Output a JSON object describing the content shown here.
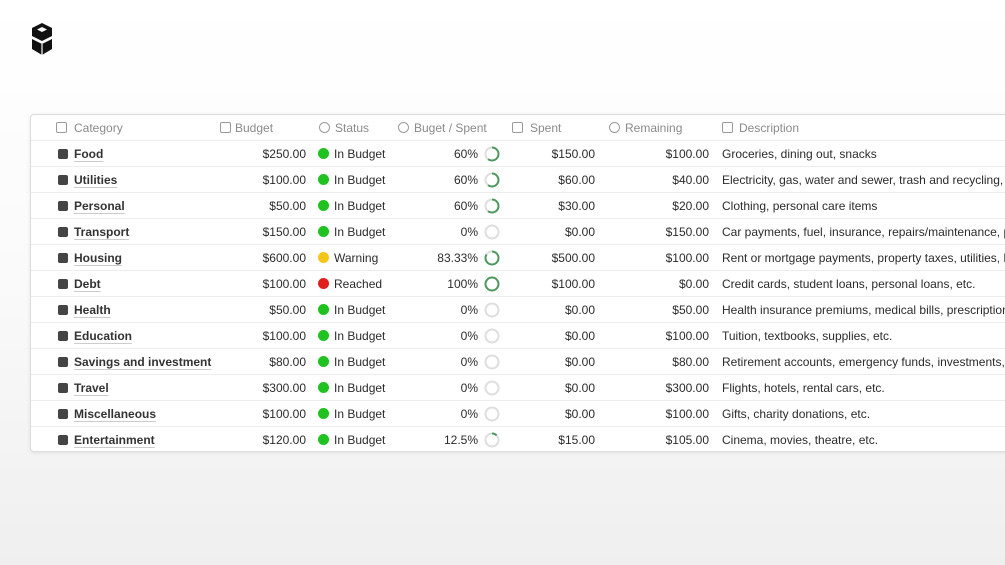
{
  "table": {
    "columns": [
      "Category",
      "Budget",
      "Status",
      "Buget / Spent",
      "Spent",
      "Remaining",
      "Description"
    ],
    "rows": [
      {
        "category": "Food",
        "budget": "$250.00",
        "status": "In Budget",
        "status_color": "#1fc21f",
        "ratio": "60%",
        "spent": "$150.00",
        "remaining": "$100.00",
        "description": "Groceries, dining out, snacks"
      },
      {
        "category": "Utilities",
        "budget": "$100.00",
        "status": "In Budget",
        "status_color": "#1fc21f",
        "ratio": "60%",
        "spent": "$60.00",
        "remaining": "$40.00",
        "description": "Electricity, gas, water and sewer, trash and recycling, int"
      },
      {
        "category": "Personal",
        "budget": "$50.00",
        "status": "In Budget",
        "status_color": "#1fc21f",
        "ratio": "60%",
        "spent": "$30.00",
        "remaining": "$20.00",
        "description": "Clothing, personal care items"
      },
      {
        "category": "Transport",
        "budget": "$150.00",
        "status": "In Budget",
        "status_color": "#1fc21f",
        "ratio": "0%",
        "spent": "$0.00",
        "remaining": "$150.00",
        "description": "Car payments, fuel, insurance, repairs/maintenance, pub"
      },
      {
        "category": "Housing",
        "budget": "$600.00",
        "status": "Warning",
        "status_color": "#f5c518",
        "ratio": "83.33%",
        "spent": "$500.00",
        "remaining": "$100.00",
        "description": "Rent or mortgage payments, property taxes, utilities, hor"
      },
      {
        "category": "Debt",
        "budget": "$100.00",
        "status": "Reached",
        "status_color": "#e0201c",
        "ratio": "100%",
        "spent": "$100.00",
        "remaining": "$0.00",
        "description": "Credit cards, student loans, personal loans, etc."
      },
      {
        "category": "Health",
        "budget": "$50.00",
        "status": "In Budget",
        "status_color": "#1fc21f",
        "ratio": "0%",
        "spent": "$0.00",
        "remaining": "$50.00",
        "description": "Health insurance premiums, medical bills, prescriptions,"
      },
      {
        "category": "Education",
        "budget": "$100.00",
        "status": "In Budget",
        "status_color": "#1fc21f",
        "ratio": "0%",
        "spent": "$0.00",
        "remaining": "$100.00",
        "description": "Tuition, textbooks, supplies, etc."
      },
      {
        "category": "Savings and investment",
        "budget": "$80.00",
        "status": "In Budget",
        "status_color": "#1fc21f",
        "ratio": "0%",
        "spent": "$0.00",
        "remaining": "$80.00",
        "description": "Retirement accounts, emergency funds, investments, etc"
      },
      {
        "category": "Travel",
        "budget": "$300.00",
        "status": "In Budget",
        "status_color": "#1fc21f",
        "ratio": "0%",
        "spent": "$0.00",
        "remaining": "$300.00",
        "description": "Flights, hotels, rental cars, etc."
      },
      {
        "category": "Miscellaneous",
        "budget": "$100.00",
        "status": "In Budget",
        "status_color": "#1fc21f",
        "ratio": "0%",
        "spent": "$0.00",
        "remaining": "$100.00",
        "description": "Gifts, charity donations, etc."
      },
      {
        "category": "Entertainment",
        "budget": "$120.00",
        "status": "In Budget",
        "status_color": "#1fc21f",
        "ratio": "12.5%",
        "spent": "$15.00",
        "remaining": "$105.00",
        "description": "Cinema, movies, theatre, etc."
      }
    ]
  }
}
